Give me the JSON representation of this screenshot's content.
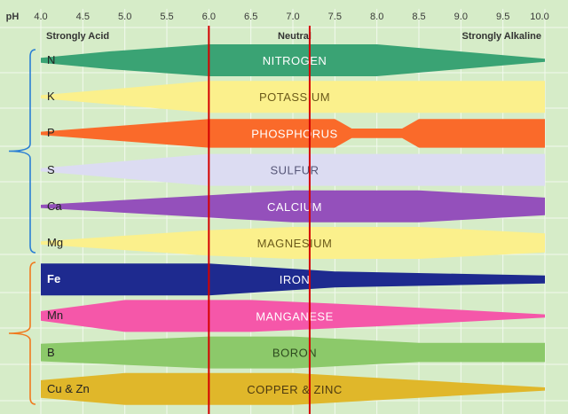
{
  "axis": {
    "label": "pH",
    "ticks": [
      "4.0",
      "4.5",
      "5.0",
      "5.5",
      "6.0",
      "6.5",
      "7.0",
      "7.5",
      "8.0",
      "8.5",
      "9.0",
      "9.5",
      "10.0"
    ],
    "range": [
      4.0,
      10.0
    ]
  },
  "scale": {
    "left": "Strongly Acid",
    "center": "Neutral",
    "right": "Strongly Alkaline"
  },
  "nutrients": [
    {
      "symbol": "N",
      "name": "NITROGEN",
      "color": "#3aa374",
      "text_color": "#ffffff",
      "profile": [
        [
          4.0,
          0.15
        ],
        [
          4.8,
          0.55
        ],
        [
          6.0,
          1.0
        ],
        [
          8.0,
          1.0
        ],
        [
          9.0,
          0.55
        ],
        [
          10.0,
          0.1
        ]
      ]
    },
    {
      "symbol": "K",
      "name": "POTASSIUM",
      "color": "#fbf08c",
      "text_color": "#6b5a1a",
      "profile": [
        [
          4.0,
          0.1
        ],
        [
          6.0,
          1.0
        ],
        [
          10.0,
          1.0
        ]
      ]
    },
    {
      "symbol": "P",
      "name": "PHOSPHORUS",
      "color": "#fa6a2a",
      "text_color": "#ffffff",
      "profile": [
        [
          4.0,
          0.1
        ],
        [
          6.0,
          0.9
        ],
        [
          7.5,
          0.9
        ],
        [
          7.7,
          0.3
        ],
        [
          8.3,
          0.3
        ],
        [
          8.5,
          0.9
        ],
        [
          10.0,
          0.9
        ]
      ]
    },
    {
      "symbol": "S",
      "name": "SULFUR",
      "color": "#dcdcf2",
      "text_color": "#555577",
      "profile": [
        [
          4.0,
          0.1
        ],
        [
          6.0,
          1.0
        ],
        [
          10.0,
          1.0
        ]
      ]
    },
    {
      "symbol": "Ca",
      "name": "CALCIUM",
      "color": "#9450bb",
      "text_color": "#ffffff",
      "profile": [
        [
          4.0,
          0.1
        ],
        [
          6.0,
          0.7
        ],
        [
          7.0,
          1.0
        ],
        [
          8.5,
          1.0
        ],
        [
          10.0,
          0.55
        ]
      ]
    },
    {
      "symbol": "Mg",
      "name": "MAGNESIUM",
      "color": "#fbf08c",
      "text_color": "#6b5a1a",
      "profile": [
        [
          4.0,
          0.1
        ],
        [
          6.0,
          0.8
        ],
        [
          7.0,
          1.0
        ],
        [
          8.5,
          1.0
        ],
        [
          10.0,
          0.6
        ]
      ]
    },
    {
      "symbol": "Fe",
      "name": "IRON",
      "color": "#1e2a8f",
      "text_color": "#ffffff",
      "profile": [
        [
          4.0,
          1.0
        ],
        [
          6.0,
          1.0
        ],
        [
          7.5,
          0.5
        ],
        [
          9.0,
          0.35
        ],
        [
          10.0,
          0.25
        ]
      ]
    },
    {
      "symbol": "Mn",
      "name": "MANGANESE",
      "color": "#f557a9",
      "text_color": "#ffffff",
      "profile": [
        [
          4.0,
          0.3
        ],
        [
          5.0,
          1.0
        ],
        [
          6.5,
          1.0
        ],
        [
          8.0,
          0.65
        ],
        [
          10.0,
          0.1
        ]
      ]
    },
    {
      "symbol": "B",
      "name": "BORON",
      "color": "#8cc96a",
      "text_color": "#2d4a1e",
      "profile": [
        [
          4.0,
          0.55
        ],
        [
          6.0,
          1.0
        ],
        [
          7.0,
          1.0
        ],
        [
          8.5,
          0.6
        ],
        [
          10.0,
          0.6
        ]
      ]
    },
    {
      "symbol": "Cu & Zn",
      "name": "COPPER & ZINC",
      "color": "#e0b72a",
      "text_color": "#4d3a10",
      "profile": [
        [
          4.0,
          0.55
        ],
        [
          5.0,
          1.0
        ],
        [
          7.0,
          1.0
        ],
        [
          8.5,
          0.55
        ],
        [
          10.0,
          0.1
        ]
      ]
    }
  ],
  "markers": [
    6.0,
    7.2
  ],
  "colors": {
    "background": "#d6ecc8",
    "grid": "#f2f9ee",
    "marker": "#d40000",
    "brace_macro": "#2a7fd4",
    "brace_micro": "#f07a1e"
  }
}
